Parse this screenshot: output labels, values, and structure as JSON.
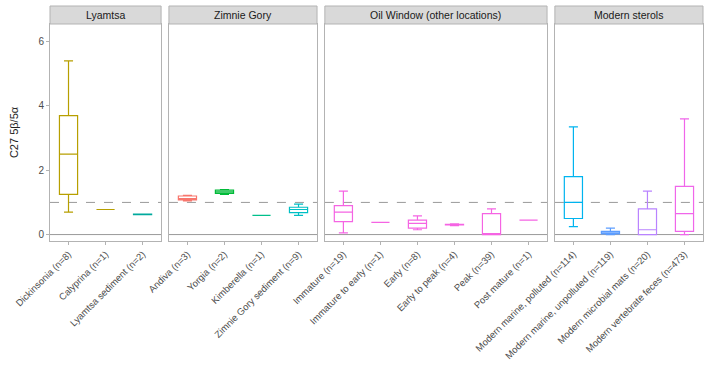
{
  "chart_data": {
    "type": "box",
    "y_label": "C27 5β/5α",
    "ylim": [
      -0.2,
      6.55
    ],
    "yticks": [
      0,
      2,
      4,
      6
    ],
    "grid": false,
    "hlines": [
      {
        "y": 0,
        "line_style": "solid"
      },
      {
        "y": 1,
        "line_style": "dashed"
      }
    ],
    "panels": [
      {
        "title": "Lyamtsa",
        "boxes": [
          {
            "category": "Dickinsonia (n=8)",
            "color": "#B79F00",
            "min": 0.7,
            "q1": 1.25,
            "median": 2.5,
            "q3": 3.7,
            "max": 5.4
          },
          {
            "category": "Calyprina (n=1)",
            "color": "#B79F00",
            "min": 0.78,
            "q1": 0.78,
            "median": 0.78,
            "q3": 0.78,
            "max": 0.78
          },
          {
            "category": "Lyamtsa sediment (n=2)",
            "color": "#00A99D",
            "min": 0.62,
            "q1": 0.62,
            "median": 0.63,
            "q3": 0.64,
            "max": 0.64
          }
        ]
      },
      {
        "title": "Zimnie Gory",
        "boxes": [
          {
            "category": "Andiva (n=3)",
            "color": "#F8766D",
            "min": 1.05,
            "q1": 1.08,
            "median": 1.12,
            "q3": 1.2,
            "max": 1.22
          },
          {
            "category": "Yorgia (n=2)",
            "color": "#00BA38",
            "min": 1.25,
            "q1": 1.28,
            "median": 1.33,
            "q3": 1.38,
            "max": 1.4
          },
          {
            "category": "Kimberella (n=1)",
            "color": "#00C08B",
            "min": 0.6,
            "q1": 0.6,
            "median": 0.6,
            "q3": 0.6,
            "max": 0.6
          },
          {
            "category": "Zimnie Gory sediment (n=9)",
            "color": "#00BFC4",
            "min": 0.6,
            "q1": 0.68,
            "median": 0.78,
            "q3": 0.85,
            "max": 0.95
          }
        ]
      },
      {
        "title": "Oil Window (other locations)",
        "boxes": [
          {
            "category": "Immature (n=19)",
            "color": "#F564E3",
            "min": 0.05,
            "q1": 0.4,
            "median": 0.7,
            "q3": 0.9,
            "max": 1.35
          },
          {
            "category": "Immature to early (n=1)",
            "color": "#F564E3",
            "min": 0.38,
            "q1": 0.38,
            "median": 0.38,
            "q3": 0.38,
            "max": 0.38
          },
          {
            "category": "Early (n=8)",
            "color": "#F564E3",
            "min": 0.15,
            "q1": 0.2,
            "median": 0.35,
            "q3": 0.45,
            "max": 0.58
          },
          {
            "category": "Early to peak (n=4)",
            "color": "#F564E3",
            "min": 0.28,
            "q1": 0.3,
            "median": 0.31,
            "q3": 0.32,
            "max": 0.33
          },
          {
            "category": "Peak (n=39)",
            "color": "#F564E3",
            "min": 0,
            "q1": 0,
            "median": 0.02,
            "q3": 0.65,
            "max": 0.8
          },
          {
            "category": "Post mature (n=1)",
            "color": "#F564E3",
            "min": 0.45,
            "q1": 0.45,
            "median": 0.45,
            "q3": 0.45,
            "max": 0.45
          }
        ]
      },
      {
        "title": "Modern sterols",
        "boxes": [
          {
            "category": "Modern marine, polluted (n=114)",
            "color": "#00B4EF",
            "min": 0.25,
            "q1": 0.5,
            "median": 1.0,
            "q3": 1.8,
            "max": 3.35
          },
          {
            "category": "Modern marine, unpolluted (n=119)",
            "color": "#5C9DFF",
            "min": 0,
            "q1": 0.02,
            "median": 0.05,
            "q3": 0.1,
            "max": 0.2
          },
          {
            "category": "Modern microbial mats (n=20)",
            "color": "#B983FF",
            "min": 0,
            "q1": 0,
            "median": 0.15,
            "q3": 0.8,
            "max": 1.35
          },
          {
            "category": "Modern vertebrate feces (n=473)",
            "color": "#F066EA",
            "min": 0,
            "q1": 0.1,
            "median": 0.65,
            "q3": 1.5,
            "max": 3.6
          }
        ]
      }
    ]
  }
}
